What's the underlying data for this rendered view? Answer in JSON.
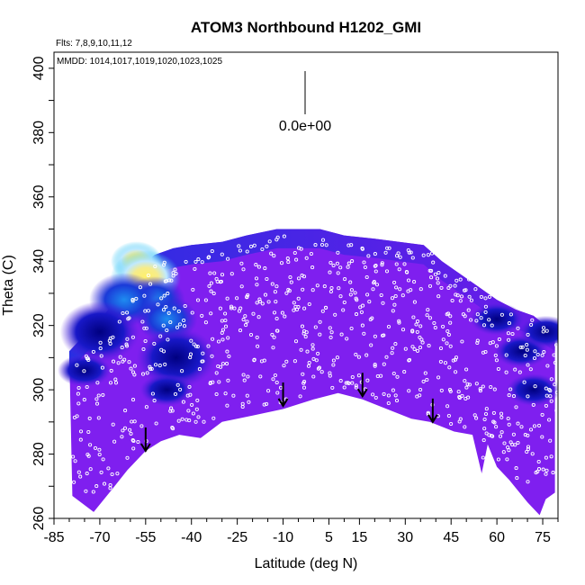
{
  "chart_data": {
    "type": "heatmap",
    "title": "ATOM3 Northbound H1202_GMI",
    "annotations": {
      "flights": "Flts: 7,8,9,10,11,12",
      "dates": "MMDD: 1014,1017,1019,1020,1023,1025",
      "scale_label": "0.0e+00"
    },
    "xlabel": "Latitude (deg N)",
    "ylabel": "Theta (C)",
    "xlim": [
      -85,
      80
    ],
    "ylim": [
      260,
      405
    ],
    "x_ticks": [
      -85,
      -70,
      -55,
      -40,
      -25,
      -10,
      5,
      15,
      30,
      45,
      60,
      75
    ],
    "x_tick_labels": [
      "-85",
      "-70",
      "-55",
      "-40",
      "-25",
      "-10",
      "5",
      "15",
      "30",
      "45",
      "60",
      "75"
    ],
    "y_ticks": [
      260,
      280,
      300,
      320,
      340,
      360,
      380,
      400
    ],
    "y_tick_labels": [
      "260",
      "280",
      "300",
      "320",
      "340",
      "360",
      "380",
      "400"
    ],
    "upper_boundary": [
      {
        "lat": -80,
        "theta": 312
      },
      {
        "lat": -76,
        "theta": 316
      },
      {
        "lat": -72,
        "theta": 320
      },
      {
        "lat": -68,
        "theta": 324
      },
      {
        "lat": -64,
        "theta": 329
      },
      {
        "lat": -60,
        "theta": 334
      },
      {
        "lat": -56,
        "theta": 339
      },
      {
        "lat": -52,
        "theta": 342
      },
      {
        "lat": -46,
        "theta": 344
      },
      {
        "lat": -40,
        "theta": 345
      },
      {
        "lat": -30,
        "theta": 346
      },
      {
        "lat": -22,
        "theta": 348
      },
      {
        "lat": -12,
        "theta": 350
      },
      {
        "lat": 2,
        "theta": 350
      },
      {
        "lat": 10,
        "theta": 348
      },
      {
        "lat": 20,
        "theta": 347
      },
      {
        "lat": 28,
        "theta": 346
      },
      {
        "lat": 36,
        "theta": 345
      },
      {
        "lat": 42,
        "theta": 340
      },
      {
        "lat": 48,
        "theta": 336
      },
      {
        "lat": 54,
        "theta": 332
      },
      {
        "lat": 60,
        "theta": 328
      },
      {
        "lat": 66,
        "theta": 325
      },
      {
        "lat": 72,
        "theta": 323
      },
      {
        "lat": 76,
        "theta": 320
      },
      {
        "lat": 79,
        "theta": 318
      }
    ],
    "lower_boundary": [
      {
        "lat": -79,
        "theta": 267
      },
      {
        "lat": -72,
        "theta": 262
      },
      {
        "lat": -66,
        "theta": 269
      },
      {
        "lat": -61,
        "theta": 275
      },
      {
        "lat": -55,
        "theta": 281
      },
      {
        "lat": -50,
        "theta": 284
      },
      {
        "lat": -44,
        "theta": 286
      },
      {
        "lat": -37,
        "theta": 285
      },
      {
        "lat": -30,
        "theta": 290
      },
      {
        "lat": -20,
        "theta": 292
      },
      {
        "lat": -10,
        "theta": 294
      },
      {
        "lat": 0,
        "theta": 297
      },
      {
        "lat": 8,
        "theta": 299
      },
      {
        "lat": 16,
        "theta": 297
      },
      {
        "lat": 24,
        "theta": 294
      },
      {
        "lat": 32,
        "theta": 291
      },
      {
        "lat": 38,
        "theta": 290
      },
      {
        "lat": 46,
        "theta": 287
      },
      {
        "lat": 52,
        "theta": 286
      },
      {
        "lat": 55,
        "theta": 274
      },
      {
        "lat": 57,
        "theta": 283
      },
      {
        "lat": 60,
        "theta": 276
      },
      {
        "lat": 64,
        "theta": 272
      },
      {
        "lat": 70,
        "theta": 265
      },
      {
        "lat": 74,
        "theta": 261
      },
      {
        "lat": 76,
        "theta": 266
      },
      {
        "lat": 79,
        "theta": 268
      }
    ],
    "tropopause_arrows": [
      {
        "lat": -55,
        "theta": 281
      },
      {
        "lat": -10,
        "theta": 295
      },
      {
        "lat": 16,
        "theta": 298
      },
      {
        "lat": 39,
        "theta": 290
      }
    ],
    "high_value_region": [
      {
        "lat": -58,
        "theta": 340,
        "level": "yellow"
      },
      {
        "lat": -55,
        "theta": 335,
        "level": "cyan"
      },
      {
        "lat": -52,
        "theta": 328,
        "level": "light-blue"
      },
      {
        "lat": -48,
        "theta": 322,
        "level": "light-blue"
      },
      {
        "lat": -62,
        "theta": 328,
        "level": "blue"
      },
      {
        "lat": -70,
        "theta": 318,
        "level": "dark-blue"
      },
      {
        "lat": -45,
        "theta": 310,
        "level": "dark-blue"
      }
    ],
    "colorscale": {
      "low": "#7f1fef",
      "mid": "#1010d0",
      "dark": "#00008a",
      "cyan": "#29c4f4",
      "light": "#bfe9ff",
      "high": "#f5e630"
    },
    "flight_track_color": "#ffffff"
  }
}
